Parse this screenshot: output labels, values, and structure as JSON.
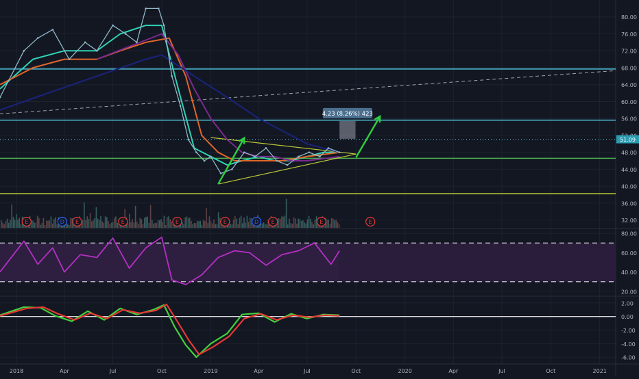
{
  "colors": {
    "background": "#131722",
    "grid": "#1e2230",
    "axis_text": "#b2b5be",
    "cyan_line": "#4fc3d9",
    "green_line": "#4caf50",
    "yellow_line": "#cddc39",
    "blue_ma": "#1a237e",
    "purple_ma": "#7b2a8f",
    "orange_ma": "#e0662b",
    "teal_ma": "#2fd2b4",
    "price": "#8fb9c8",
    "arrow": "#2ecc40",
    "rsi": "#b52fc4",
    "rsi_band": "#2a1d3c",
    "macd_signal": "#e53935",
    "macd_line": "#43d13e",
    "earnings": "#e53935",
    "dividend": "#2962ff",
    "volume": "#7a6b6b"
  },
  "chart_data": [
    {
      "type": "line",
      "panel": "price",
      "ylim": [
        30,
        84
      ],
      "y_ticks": [
        "80.00",
        "76.00",
        "72.00",
        "68.00",
        "64.00",
        "60.00",
        "56.00",
        "52.00",
        "48.00",
        "44.00",
        "40.00",
        "36.00",
        "32.00"
      ],
      "current_price_label": "51.09",
      "x_ticks": [
        "2018",
        "Apr",
        "Jul",
        "Oct",
        "2019",
        "Apr",
        "Jul",
        "Oct",
        "2020",
        "Apr",
        "Jul",
        "Oct",
        "2021"
      ],
      "x_tick_dates": [
        "2018-01-01",
        "2018-04-01",
        "2018-07-01",
        "2018-10-01",
        "2019-01-01",
        "2019-04-01",
        "2019-07-01",
        "2019-10-01",
        "2020-01-01",
        "2020-04-01",
        "2020-07-01",
        "2020-10-01",
        "2021-01-01"
      ],
      "price_series": {
        "x": [
          "2017-12-01",
          "2018-01-15",
          "2018-02-10",
          "2018-03-10",
          "2018-04-10",
          "2018-05-10",
          "2018-06-01",
          "2018-07-01",
          "2018-07-25",
          "2018-08-15",
          "2018-09-01",
          "2018-09-25",
          "2018-10-05",
          "2018-10-20",
          "2018-11-05",
          "2018-11-20",
          "2018-12-05",
          "2018-12-20",
          "2019-01-01",
          "2019-01-20",
          "2019-02-10",
          "2019-03-05",
          "2019-03-25",
          "2019-04-15",
          "2019-05-05",
          "2019-05-25",
          "2019-06-15",
          "2019-07-05",
          "2019-07-25",
          "2019-08-10",
          "2019-08-31"
        ],
        "y": [
          61,
          72,
          75,
          77,
          70,
          74,
          72,
          78,
          76,
          74,
          82,
          82,
          78,
          66,
          59,
          51,
          48,
          46,
          47,
          43,
          44,
          48,
          47,
          49,
          46,
          45,
          47,
          48,
          47,
          49,
          48
        ]
      },
      "moving_averages": [
        {
          "color_key": "teal_ma",
          "x": [
            "2017-12-01",
            "2018-02-01",
            "2018-04-01",
            "2018-06-01",
            "2018-07-15",
            "2018-09-01",
            "2018-10-01",
            "2018-11-01",
            "2018-12-01",
            "2019-01-01",
            "2019-02-01",
            "2019-03-01",
            "2019-04-01",
            "2019-05-01",
            "2019-06-01",
            "2019-07-01",
            "2019-08-01",
            "2019-08-31"
          ],
          "y": [
            63,
            70,
            72,
            72,
            76,
            78,
            78,
            63,
            49,
            47,
            45,
            46,
            47,
            46,
            46,
            47,
            48,
            48
          ]
        },
        {
          "color_key": "orange_ma",
          "x": [
            "2017-12-01",
            "2018-02-01",
            "2018-04-01",
            "2018-06-01",
            "2018-07-15",
            "2018-09-01",
            "2018-10-15",
            "2018-11-15",
            "2018-12-15",
            "2019-01-15",
            "2019-02-15",
            "2019-04-01",
            "2019-05-15",
            "2019-07-01",
            "2019-08-31"
          ],
          "y": [
            64,
            68,
            70,
            70,
            72,
            74,
            75,
            66,
            52,
            48,
            46,
            46,
            46,
            47,
            48
          ]
        },
        {
          "color_key": "purple_ma",
          "x": [
            "2018-06-01",
            "2018-08-01",
            "2018-10-01",
            "2018-11-01",
            "2018-12-01",
            "2019-01-01",
            "2019-02-01",
            "2019-03-01",
            "2019-04-01",
            "2019-05-01",
            "2019-06-01",
            "2019-07-01",
            "2019-08-31"
          ],
          "y": [
            70,
            73,
            76,
            71,
            63,
            56,
            51,
            48,
            47,
            47,
            46,
            46,
            47
          ]
        },
        {
          "color_key": "blue_ma",
          "x": [
            "2017-12-01",
            "2018-03-01",
            "2018-06-01",
            "2018-09-01",
            "2018-10-01",
            "2018-12-01",
            "2019-02-01",
            "2019-04-01",
            "2019-06-01",
            "2019-07-01",
            "2019-08-31"
          ],
          "y": [
            58,
            62,
            66,
            70,
            71,
            66,
            61,
            56,
            52,
            50,
            48
          ]
        }
      ],
      "horizontal_lines": [
        {
          "y": 67.7,
          "color_key": "cyan_line"
        },
        {
          "y": 55.6,
          "color_key": "cyan_line"
        },
        {
          "y": 46.6,
          "color_key": "green_line"
        },
        {
          "y": 38.2,
          "color_key": "yellow_line"
        }
      ],
      "trend_lines": [
        {
          "color_key": "axis_text",
          "style": "dashed",
          "x": [
            "2017-12-01",
            "2021-01-31"
          ],
          "y": [
            57.1,
            67.3
          ]
        },
        {
          "color_key": "yellow_line",
          "style": "solid",
          "x": [
            "2019-01-01",
            "2019-10-01"
          ],
          "y": [
            51.5,
            47.6
          ]
        },
        {
          "color_key": "yellow_line",
          "style": "solid",
          "x": [
            "2019-01-15",
            "2019-10-01"
          ],
          "y": [
            40.5,
            47.6
          ]
        }
      ],
      "arrows": [
        {
          "x": [
            "2019-01-15",
            "2019-03-05"
          ],
          "y": [
            40.5,
            51.4
          ]
        },
        {
          "x": [
            "2019-10-01",
            "2019-11-15"
          ],
          "y": [
            46.8,
            56.5
          ]
        }
      ],
      "measure_box": {
        "label": "4.23 (8.26%) 423",
        "x": [
          "2019-08-31",
          "2019-09-30"
        ],
        "y": [
          51.2,
          55.4
        ]
      },
      "volume_markers": [
        {
          "label": "E",
          "kind": "earnings",
          "x": "2018-01-20"
        },
        {
          "label": "D",
          "kind": "dividend",
          "x": "2018-03-28"
        },
        {
          "label": "E",
          "kind": "earnings",
          "x": "2018-04-25"
        },
        {
          "label": "E",
          "kind": "earnings",
          "x": "2018-07-20"
        },
        {
          "label": "E",
          "kind": "earnings",
          "x": "2018-10-30"
        },
        {
          "label": "E",
          "kind": "earnings",
          "x": "2019-01-28"
        },
        {
          "label": "D",
          "kind": "dividend",
          "x": "2019-03-28"
        },
        {
          "label": "E",
          "kind": "earnings",
          "x": "2019-04-28"
        },
        {
          "label": "E",
          "kind": "earnings",
          "x": "2019-07-28"
        },
        {
          "label": "E",
          "kind": "earnings",
          "x": "2019-10-28"
        }
      ]
    },
    {
      "type": "line",
      "panel": "rsi",
      "ylim": [
        15,
        85
      ],
      "y_ticks": [
        "80.00",
        "60.00",
        "40.00",
        "20.00"
      ],
      "bands": [
        70,
        30
      ],
      "x": [
        "2017-12-01",
        "2018-01-15",
        "2018-02-10",
        "2018-03-10",
        "2018-04-01",
        "2018-05-01",
        "2018-06-01",
        "2018-07-01",
        "2018-08-01",
        "2018-09-01",
        "2018-10-01",
        "2018-10-20",
        "2018-11-15",
        "2018-12-15",
        "2019-01-15",
        "2019-02-15",
        "2019-03-15",
        "2019-04-15",
        "2019-05-15",
        "2019-06-15",
        "2019-07-15",
        "2019-08-15",
        "2019-08-31"
      ],
      "y": [
        40,
        72,
        48,
        65,
        40,
        58,
        55,
        75,
        44,
        65,
        76,
        32,
        27,
        37,
        55,
        62,
        60,
        47,
        58,
        62,
        70,
        48,
        62
      ]
    },
    {
      "type": "line",
      "panel": "macd",
      "ylim": [
        -7,
        3
      ],
      "y_ticks": [
        "2.00",
        "0.00",
        "-2.00",
        "-4.00",
        "-6.00"
      ],
      "series": [
        {
          "color_key": "macd_line",
          "x": [
            "2017-12-01",
            "2018-01-15",
            "2018-02-15",
            "2018-03-15",
            "2018-04-15",
            "2018-05-15",
            "2018-06-15",
            "2018-07-15",
            "2018-08-15",
            "2018-09-15",
            "2018-10-05",
            "2018-10-25",
            "2018-11-15",
            "2018-12-05",
            "2019-01-01",
            "2019-02-01",
            "2019-03-01",
            "2019-04-01",
            "2019-05-01",
            "2019-06-01",
            "2019-07-01",
            "2019-08-01",
            "2019-08-31"
          ],
          "y": [
            0.2,
            1.4,
            1.3,
            0.1,
            -0.7,
            0.8,
            -0.5,
            1.2,
            0.3,
            1.0,
            1.7,
            -1.5,
            -4.2,
            -6.0,
            -4.0,
            -2.5,
            0.3,
            0.5,
            -0.8,
            0.4,
            -0.3,
            0.3,
            0.2
          ]
        },
        {
          "color_key": "macd_signal",
          "x": [
            "2017-12-01",
            "2018-01-20",
            "2018-02-20",
            "2018-03-20",
            "2018-04-20",
            "2018-05-20",
            "2018-06-20",
            "2018-07-20",
            "2018-08-20",
            "2018-09-20",
            "2018-10-10",
            "2018-10-30",
            "2018-11-20",
            "2018-12-10",
            "2019-01-05",
            "2019-02-05",
            "2019-03-05",
            "2019-04-05",
            "2019-05-05",
            "2019-06-05",
            "2019-07-05",
            "2019-08-05",
            "2019-08-31"
          ],
          "y": [
            0.1,
            1.2,
            1.4,
            0.4,
            -0.5,
            0.5,
            -0.3,
            1.0,
            0.5,
            0.9,
            1.8,
            -0.7,
            -3.4,
            -5.6,
            -4.5,
            -2.9,
            -0.3,
            0.4,
            -0.5,
            0.2,
            -0.1,
            0.2,
            0.1
          ]
        }
      ]
    }
  ]
}
